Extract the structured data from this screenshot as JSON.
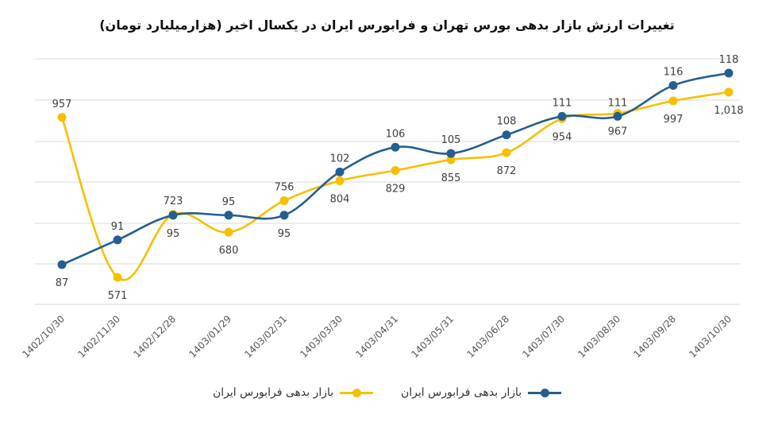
{
  "chart_data": {
    "type": "line",
    "title": "تغییرات ارزش بازار بدهی بورس تهران و فرابورس ایران در یکسال اخیر (هزارمیلیارد تومان)",
    "categories": [
      "1402/10/30",
      "1402/11/30",
      "1402/12/28",
      "1403/01/29",
      "1403/02/31",
      "1403/03/30",
      "1403/04/31",
      "1403/05/31",
      "1403/06/28",
      "1403/07/30",
      "1403/08/30",
      "1403/09/28",
      "1403/10/30"
    ],
    "series": [
      {
        "name": "بازار بدهی فرابورس ایران",
        "color": "#F5C000",
        "values": [
          957,
          571,
          723,
          680,
          756,
          804,
          829,
          855,
          872,
          954,
          967,
          997,
          1018
        ],
        "labels": [
          "957",
          "571",
          "723",
          "680",
          "756",
          "804",
          "829",
          "855",
          "872",
          "954",
          "967",
          "997",
          "1,018"
        ]
      },
      {
        "name": "بازار بدهی فرابورس ایران",
        "color": "#255E91",
        "values": [
          87,
          91,
          95,
          95,
          95,
          102,
          106,
          105,
          108,
          111,
          111,
          116,
          118
        ],
        "labels": [
          "87",
          "91",
          "95",
          "95",
          "95",
          "102",
          "106",
          "105",
          "108",
          "111",
          "111",
          "116",
          "118"
        ]
      }
    ],
    "gridlines": true,
    "legend_position": "bottom"
  }
}
